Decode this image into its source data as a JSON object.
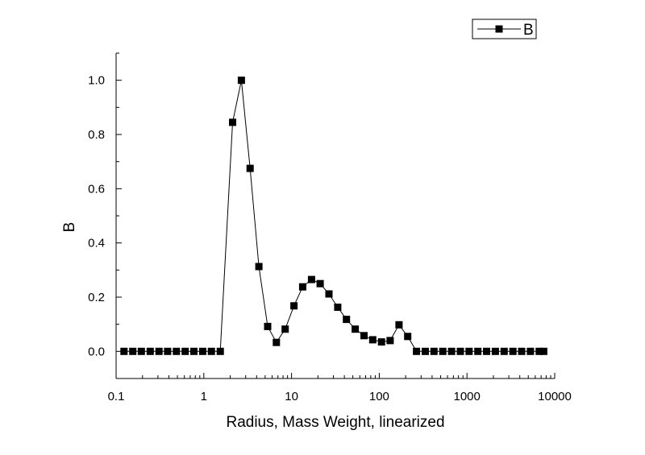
{
  "chart_data": {
    "type": "line",
    "xscale": "log",
    "xlim": [
      0.1,
      10000
    ],
    "ylim": [
      -0.1,
      1.1
    ],
    "xlabel": "Radius, Mass Weight, linearized",
    "ylabel": "B",
    "x_ticks": [
      {
        "value": 0.1,
        "label": "0.1"
      },
      {
        "value": 1,
        "label": "1"
      },
      {
        "value": 10,
        "label": "10"
      },
      {
        "value": 100,
        "label": "100"
      },
      {
        "value": 1000,
        "label": "1000"
      },
      {
        "value": 10000,
        "label": "10000"
      }
    ],
    "y_ticks": [
      {
        "value": 0.0,
        "label": "0.0"
      },
      {
        "value": 0.2,
        "label": "0.2"
      },
      {
        "value": 0.4,
        "label": "0.4"
      },
      {
        "value": 0.6,
        "label": "0.6"
      },
      {
        "value": 0.8,
        "label": "0.8"
      },
      {
        "value": 1.0,
        "label": "1.0"
      }
    ],
    "grid": false,
    "legend": {
      "position": "top-right"
    },
    "series": [
      {
        "name": "B",
        "color": "#000000",
        "marker": "square",
        "x": [
          0.123,
          0.155,
          0.194,
          0.245,
          0.308,
          0.387,
          0.487,
          0.613,
          0.771,
          0.971,
          1.22,
          1.54,
          2.13,
          2.68,
          3.37,
          4.24,
          5.34,
          6.72,
          8.46,
          10.65,
          13.4,
          16.9,
          21.2,
          26.7,
          33.6,
          42.3,
          53.2,
          67.0,
          84.3,
          106,
          133,
          168,
          211,
          266,
          335,
          421,
          530,
          667,
          840,
          1057,
          1330,
          1674,
          2107,
          2653,
          3339,
          4203,
          5290,
          6659,
          7500
        ],
        "y": [
          0,
          0,
          0,
          0,
          0,
          0,
          0,
          0,
          0,
          0,
          0,
          0,
          0.845,
          1.0,
          0.675,
          0.313,
          0.092,
          0.033,
          0.082,
          0.168,
          0.238,
          0.265,
          0.25,
          0.212,
          0.163,
          0.118,
          0.082,
          0.058,
          0.043,
          0.035,
          0.04,
          0.098,
          0.055,
          0,
          0,
          0,
          0,
          0,
          0,
          0,
          0,
          0,
          0,
          0,
          0,
          0,
          0,
          0,
          0
        ]
      }
    ]
  }
}
